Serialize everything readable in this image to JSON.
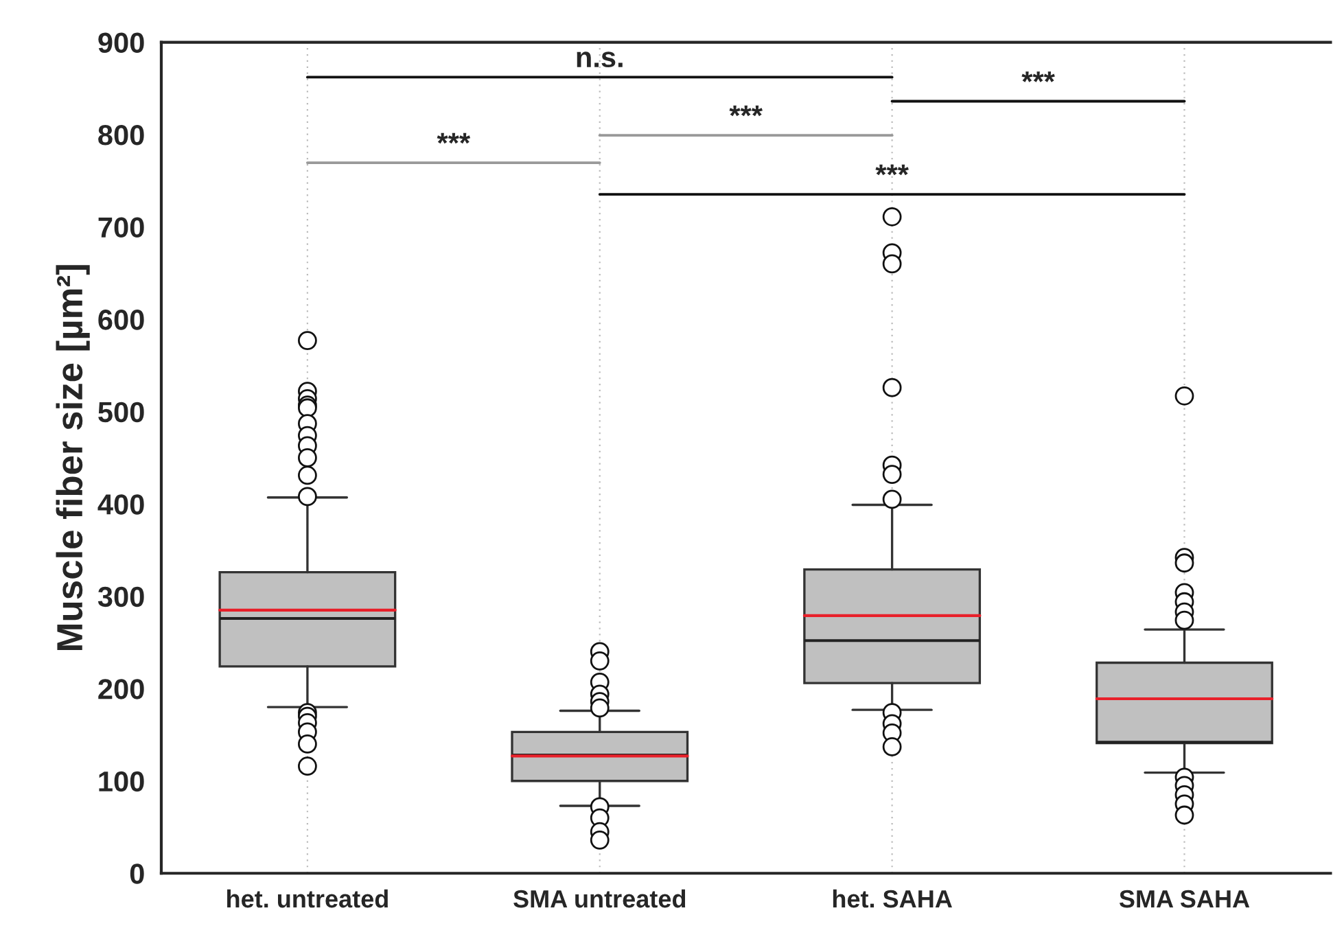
{
  "chart_data": {
    "type": "box",
    "ylabel": "Muscle fiber size [µm²]",
    "categories": [
      "het. untreated",
      "SMA untreated",
      "het. SAHA",
      "SMA SAHA"
    ],
    "color": "#c0c0c0",
    "boxes": [
      {
        "low": 180,
        "q1": 224,
        "median": 276,
        "q3": 326,
        "high": 407,
        "mean": 285,
        "outliers": [
          577,
          522,
          514,
          507,
          504,
          487,
          474,
          463,
          450,
          431,
          408,
          174,
          170,
          163,
          153,
          140,
          116
        ]
      },
      {
        "low": 73,
        "q1": 100,
        "median": 128,
        "q3": 153,
        "high": 176,
        "mean": 127,
        "outliers": [
          240,
          230,
          207,
          194,
          186,
          179,
          72,
          60,
          45,
          36
        ]
      },
      {
        "low": 177,
        "q1": 206,
        "median": 252,
        "q3": 329,
        "high": 399,
        "mean": 279,
        "outliers": [
          711,
          672,
          660,
          526,
          442,
          432,
          405,
          174,
          162,
          152,
          137
        ]
      },
      {
        "low": 109,
        "q1": 141,
        "median": 142,
        "q3": 228,
        "high": 264,
        "mean": 189,
        "outliers": [
          517,
          342,
          336,
          304,
          294,
          283,
          274,
          104,
          95,
          85,
          75,
          63
        ]
      }
    ],
    "ylim": [
      0,
      900
    ],
    "yticks": [
      0,
      100,
      200,
      300,
      400,
      500,
      600,
      700,
      800,
      900
    ],
    "grid": "x",
    "annotations": [
      "n.s.",
      "***",
      "***",
      "***",
      "***"
    ]
  }
}
